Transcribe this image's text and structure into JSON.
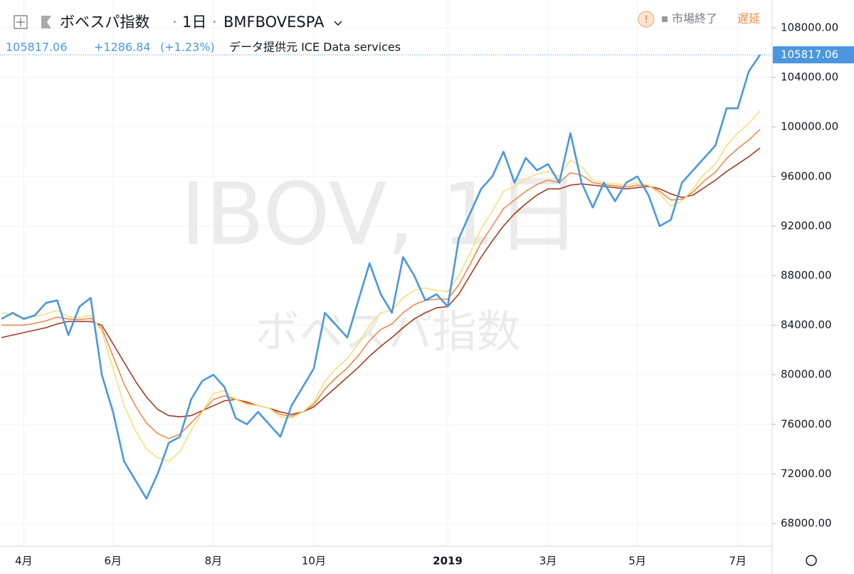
{
  "header": {
    "name": "ボベスパ指数",
    "interval": "1日",
    "exchange": "BMFBOVESPA",
    "change": "+1286.84",
    "change_percent": "(+1.23%)",
    "source": "データ提供元 ICE Data services",
    "status": "市場終了",
    "delay": "遅延"
  },
  "watermark": {
    "symbol": "IBOV, 1日",
    "name": "ボベスパ指数"
  },
  "chart_data": {
    "type": "line",
    "categories": [
      null,
      null,
      "4月",
      null,
      null,
      null,
      null,
      null,
      null,
      null,
      "6月",
      null,
      null,
      null,
      null,
      null,
      null,
      null,
      null,
      "8月",
      null,
      null,
      null,
      null,
      null,
      null,
      null,
      null,
      "10月",
      null,
      null,
      null,
      null,
      null,
      null,
      null,
      null,
      null,
      null,
      null,
      "2019",
      null,
      null,
      null,
      null,
      null,
      null,
      null,
      null,
      "3月",
      null,
      null,
      null,
      null,
      null,
      null,
      null,
      "5月",
      null,
      null,
      null,
      null,
      null,
      null,
      null,
      null,
      "7月",
      null,
      null
    ],
    "series": [
      {
        "color": "#a33a1f",
        "values": [
          83000,
          83200,
          83400,
          83600,
          83800,
          84100,
          84300,
          84300,
          84300,
          84000,
          82500,
          81000,
          79500,
          78200,
          77200,
          76700,
          76600,
          76700,
          77100,
          77500,
          77900,
          78000,
          77800,
          77500,
          77300,
          77000,
          76800,
          77000,
          77400,
          78200,
          79000,
          79800,
          80600,
          81500,
          82300,
          83000,
          83800,
          84500,
          85000,
          85400,
          85500,
          86500,
          88000,
          89500,
          90800,
          92000,
          93000,
          93800,
          94500,
          95000,
          95000,
          95300,
          95400,
          95300,
          95200,
          95100,
          95000,
          95100,
          95200,
          95000,
          94600,
          94300,
          94500,
          95100,
          95700,
          96400,
          97000,
          97600,
          98300
        ]
      },
      {
        "color": "#ec8a4e",
        "values": [
          84000,
          84000,
          84000,
          84150,
          84350,
          84650,
          84500,
          84450,
          84550,
          83750,
          81500,
          79250,
          77500,
          76100,
          75250,
          74850,
          75200,
          76100,
          77050,
          78000,
          78300,
          78000,
          77700,
          77500,
          77300,
          76800,
          76650,
          77000,
          77600,
          78850,
          79750,
          80550,
          81550,
          82750,
          83650,
          84100,
          85000,
          85650,
          86000,
          86100,
          86100,
          87250,
          88900,
          90650,
          92000,
          93400,
          94100,
          94800,
          95350,
          95700,
          95500,
          96300,
          96100,
          95500,
          95350,
          95250,
          95150,
          95300,
          95250,
          94800,
          94100,
          94150,
          94750,
          95650,
          96350,
          97450,
          98250,
          98950,
          99800
        ]
      },
      {
        "color": "#f5df7a",
        "values": [
          85000,
          84800,
          84600,
          84700,
          84900,
          85200,
          84700,
          84600,
          84800,
          83500,
          80500,
          77500,
          75500,
          74000,
          73300,
          73000,
          73800,
          75500,
          77000,
          78500,
          78700,
          78000,
          77600,
          77500,
          77300,
          76600,
          76500,
          77000,
          77800,
          79500,
          80500,
          81300,
          82500,
          84000,
          85000,
          85200,
          86200,
          86800,
          87000,
          86800,
          86700,
          88000,
          89800,
          91800,
          93200,
          94800,
          95200,
          95800,
          96200,
          96400,
          96000,
          97300,
          96800,
          95700,
          95500,
          95400,
          95300,
          95500,
          95300,
          94600,
          93600,
          94000,
          95000,
          96200,
          97000,
          98500,
          99500,
          100300,
          101300
        ]
      },
      {
        "color": "#4a97e0",
        "values": [
          84500,
          85000,
          84500,
          84800,
          85800,
          86000,
          83200,
          85500,
          86200,
          80000,
          77000,
          73000,
          71500,
          70000,
          72000,
          74500,
          75000,
          78000,
          79500,
          80000,
          79000,
          76500,
          76000,
          77000,
          76000,
          75000,
          77500,
          79000,
          80500,
          85000,
          84000,
          83000,
          86000,
          89000,
          86500,
          85000,
          89500,
          88000,
          86000,
          86500,
          85500,
          91000,
          93000,
          95000,
          96000,
          98000,
          95500,
          97500,
          96500,
          97000,
          95500,
          99500,
          95500,
          93500,
          95500,
          94000,
          95500,
          96000,
          94500,
          92000,
          92500,
          95500,
          96500,
          97500,
          98500,
          101500,
          101500,
          104500,
          105817.06
        ]
      }
    ],
    "ylim": [
      66160,
      110240
    ],
    "yticks": [
      {
        "value": 68000,
        "label": "68000.00"
      },
      {
        "value": 72000,
        "label": "72000.00"
      },
      {
        "value": 76000,
        "label": "76000.00"
      },
      {
        "value": 80000,
        "label": "80000.00"
      },
      {
        "value": 84000,
        "label": "84000.00"
      },
      {
        "value": 88000,
        "label": "88000.00"
      },
      {
        "value": 92000,
        "label": "92000.00"
      },
      {
        "value": 96000,
        "label": "96000.00"
      },
      {
        "value": 100000,
        "label": "100000.00"
      },
      {
        "value": 104000,
        "label": "104000.00"
      },
      {
        "value": 108000,
        "label": "108000.00"
      }
    ],
    "grid": true
  }
}
